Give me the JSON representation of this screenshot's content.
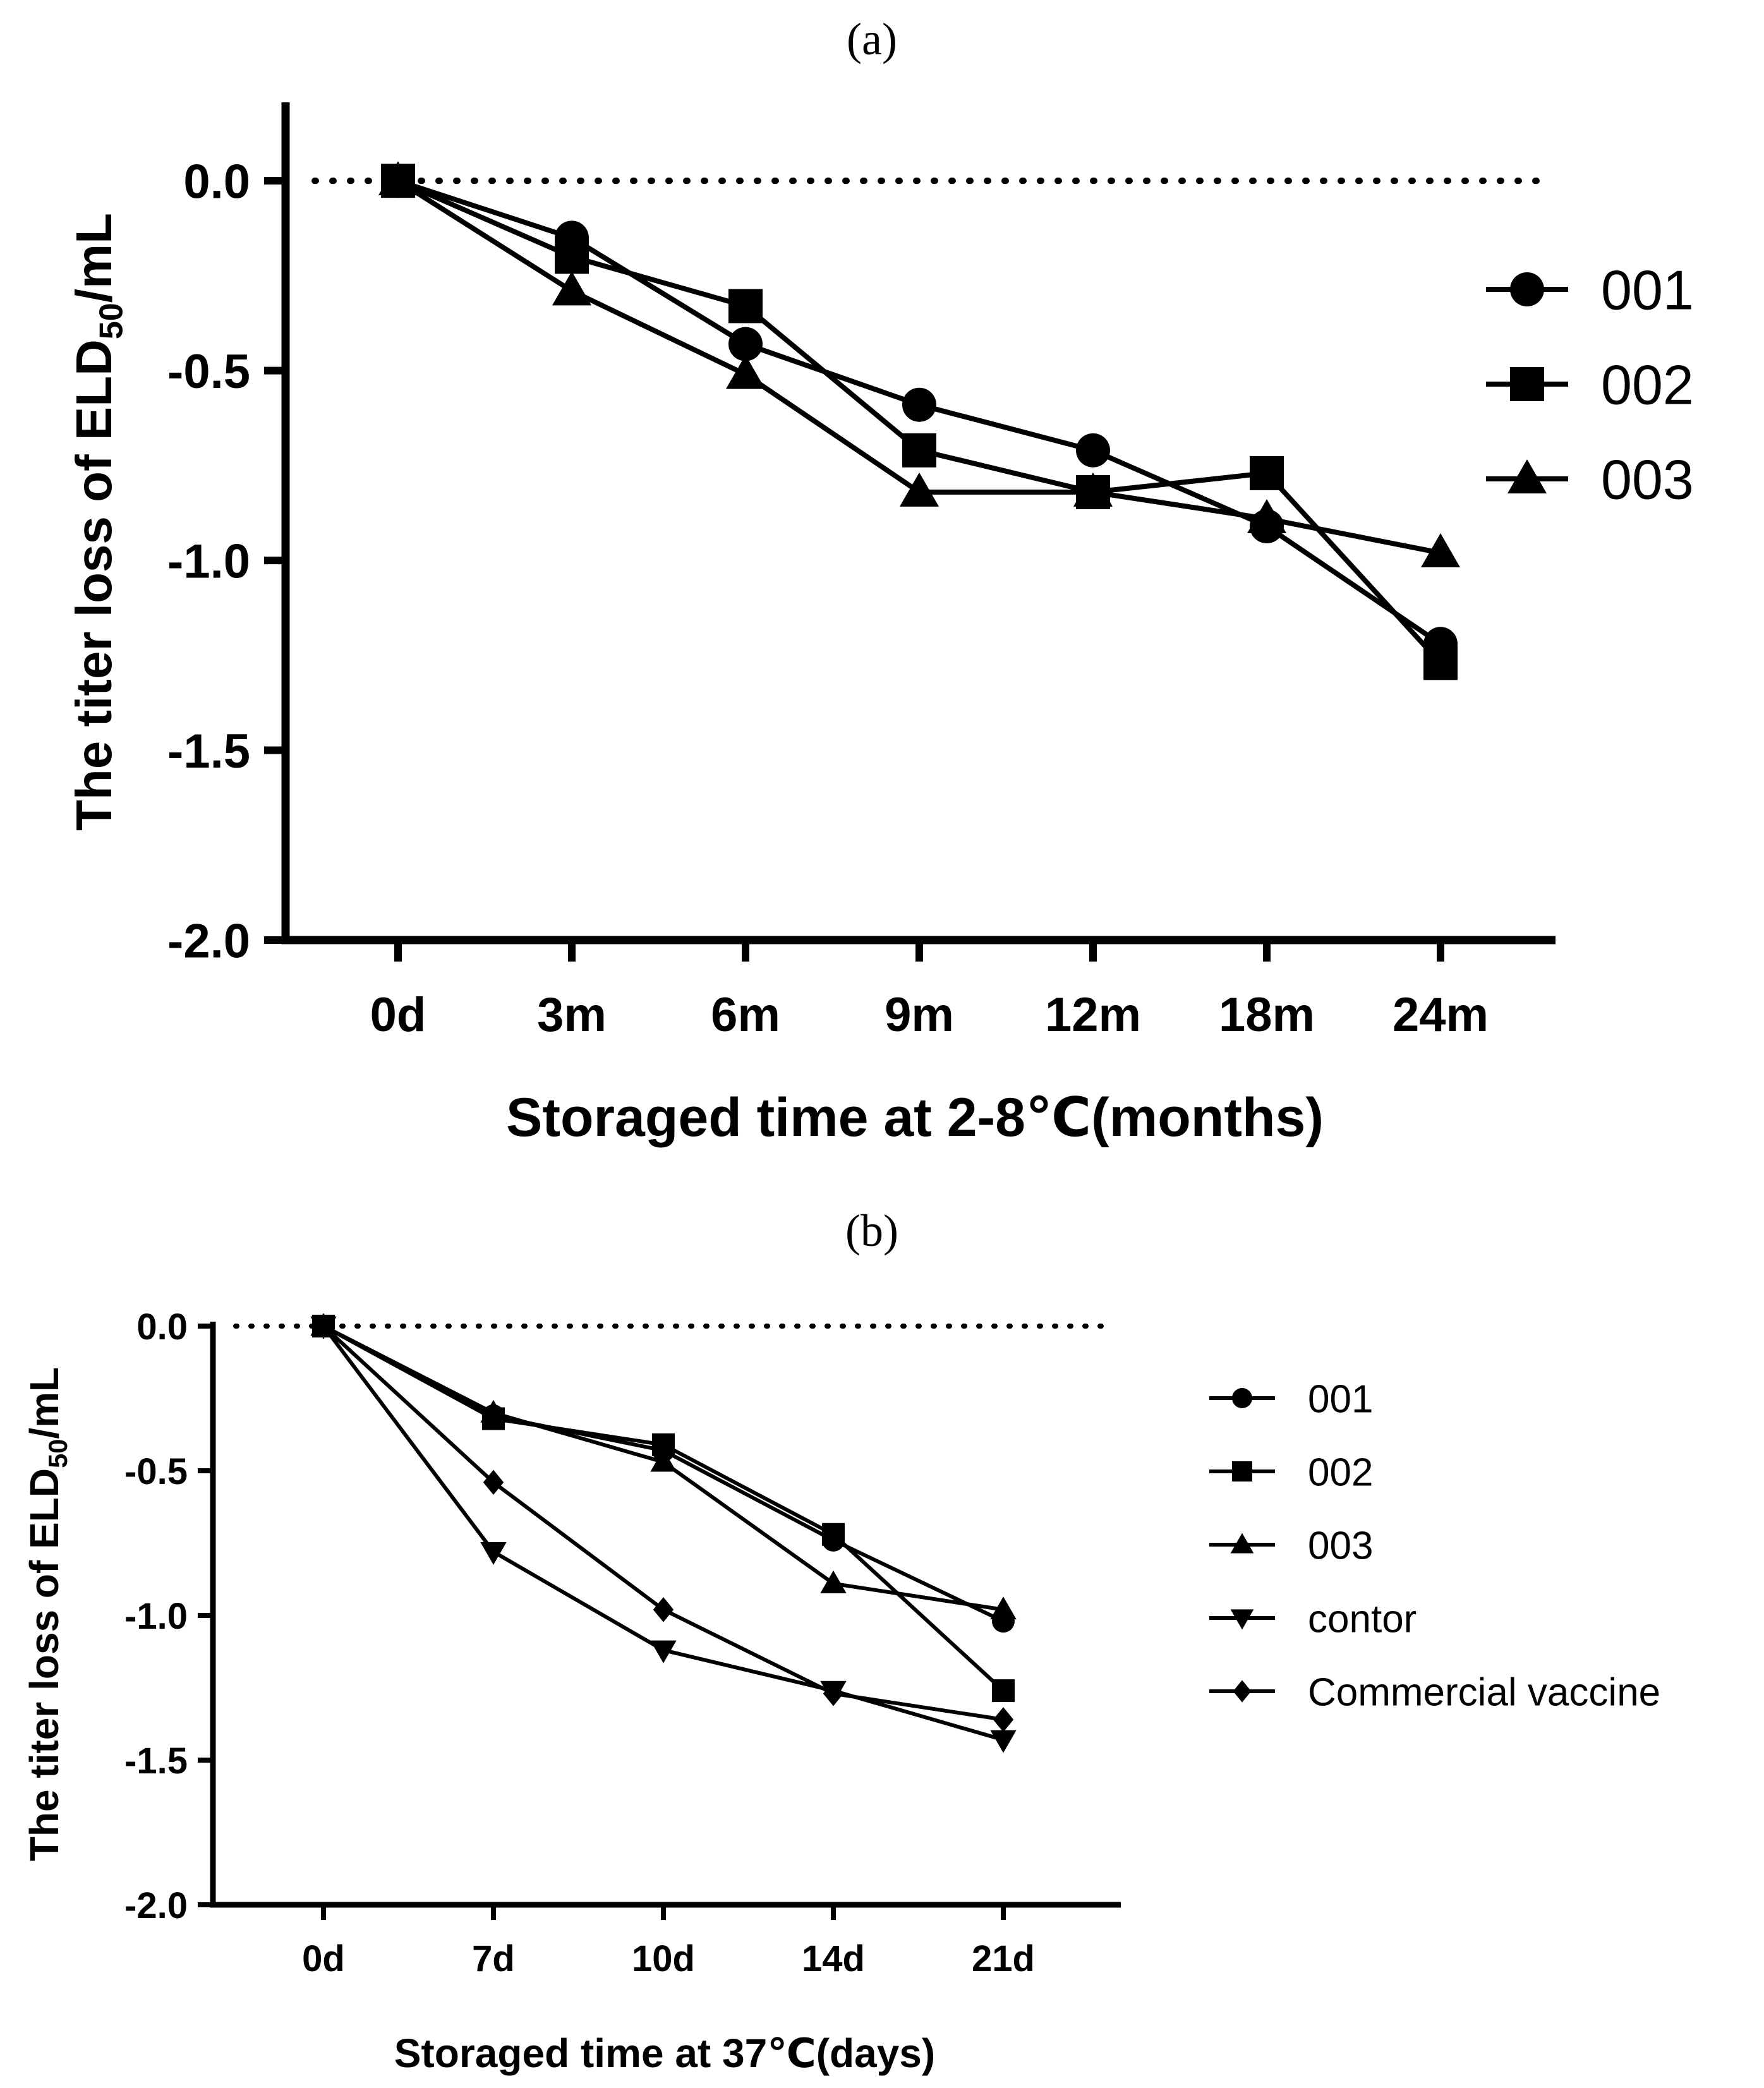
{
  "colors": {
    "series": "#000000",
    "axis": "#000000",
    "background": "#ffffff"
  },
  "panels": [
    {
      "label": "(a)"
    },
    {
      "label": "(b)"
    }
  ],
  "chart_data": [
    {
      "type": "line",
      "panel": "(a)",
      "categories": [
        "0d",
        "3m",
        "6m",
        "9m",
        "12m",
        "18m",
        "24m"
      ],
      "series": [
        {
          "name": "001",
          "marker": "circle",
          "values": [
            0,
            -0.15,
            -0.43,
            -0.59,
            -0.71,
            -0.91,
            -1.22
          ]
        },
        {
          "name": "002",
          "marker": "square",
          "values": [
            0,
            -0.2,
            -0.33,
            -0.71,
            -0.82,
            -0.77,
            -1.27
          ]
        },
        {
          "name": "003",
          "marker": "triangle",
          "values": [
            0,
            -0.29,
            -0.51,
            -0.82,
            -0.82,
            -0.89,
            -0.98
          ]
        }
      ],
      "title": "",
      "xlabel": "Storaged time at 2-8℃(months)",
      "ylabel_main": "The titer loss of ELD",
      "ylabel_sub": "50",
      "ylabel_end": "/mL",
      "ylim": [
        -2.0,
        0.2
      ],
      "yticks": [
        0.0,
        -0.5,
        -1.0,
        -1.5,
        -2.0
      ],
      "ytick_labels": [
        "0.0",
        "-0.5",
        "-1.0",
        "-1.5",
        "-2.0"
      ],
      "reference_line": 0.0,
      "grid": false,
      "legend": "right"
    },
    {
      "type": "line",
      "panel": "(b)",
      "categories": [
        "0d",
        "7d",
        "10d",
        "14d",
        "21d"
      ],
      "series": [
        {
          "name": "001",
          "marker": "circle",
          "values": [
            0,
            -0.31,
            -0.43,
            -0.74,
            -1.02
          ]
        },
        {
          "name": "002",
          "marker": "square",
          "values": [
            0,
            -0.32,
            -0.41,
            -0.72,
            -1.26
          ]
        },
        {
          "name": "003",
          "marker": "triangle",
          "values": [
            0,
            -0.3,
            -0.47,
            -0.89,
            -0.98
          ]
        },
        {
          "name": "contor",
          "marker": "triangle-down",
          "values": [
            0,
            -0.78,
            -1.12,
            -1.26,
            -1.43
          ]
        },
        {
          "name": "Commercial vaccine",
          "marker": "diamond",
          "values": [
            0,
            -0.54,
            -0.98,
            -1.27,
            -1.36
          ]
        }
      ],
      "title": "",
      "xlabel": "Storaged time at 37℃(days)",
      "ylabel_main": "The titer loss of ELD",
      "ylabel_sub": "50",
      "ylabel_end": "/mL",
      "ylim": [
        -2.0,
        0.0
      ],
      "yticks": [
        0.0,
        -0.5,
        -1.0,
        -1.5,
        -2.0
      ],
      "ytick_labels": [
        "0.0",
        "-0.5",
        "-1.0",
        "-1.5",
        "-2.0"
      ],
      "reference_line": 0.0,
      "grid": false,
      "legend": "right"
    }
  ]
}
